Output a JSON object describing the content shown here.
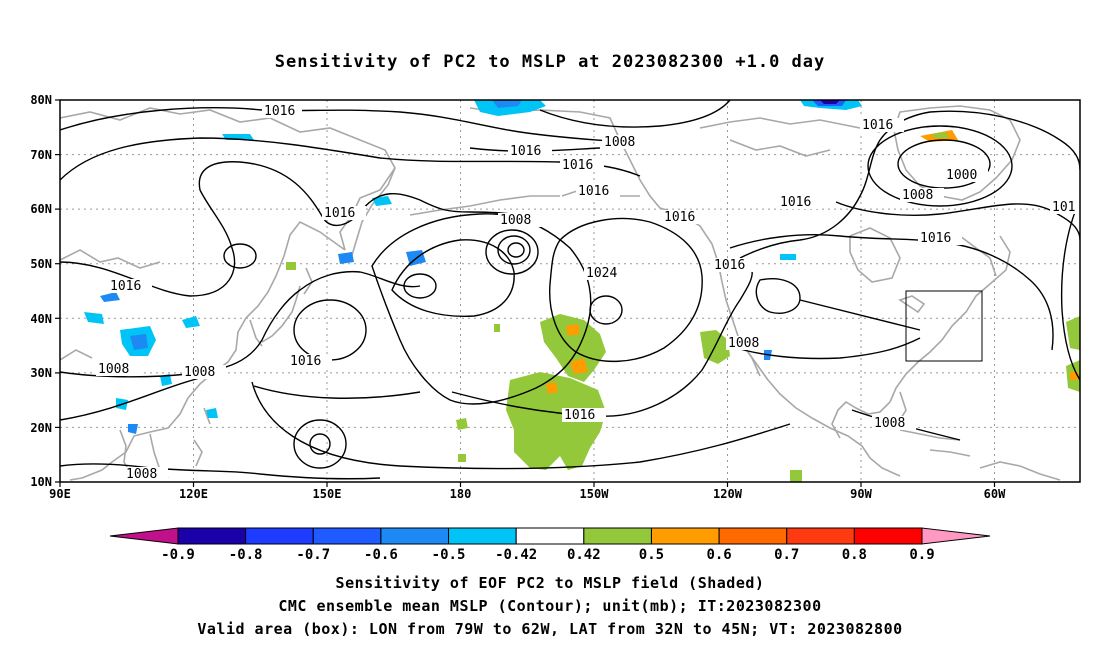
{
  "title": "Sensitivity of PC2 to MSLP at 2023082300 +1.0 day",
  "lat_ticks": [
    "80N",
    "70N",
    "60N",
    "50N",
    "40N",
    "30N",
    "20N",
    "10N"
  ],
  "lon_ticks": [
    "90E",
    "120E",
    "150E",
    "180",
    "150W",
    "120W",
    "90W",
    "60W"
  ],
  "contour_labels": [
    "1016",
    "1008",
    "1016",
    "1016",
    "1016",
    "1008",
    "1016",
    "1016",
    "1016",
    "1016",
    "1016",
    "1024",
    "1016",
    "1016",
    "1016",
    "1008",
    "1008",
    "1008",
    "1016",
    "1000",
    "1008",
    "1008",
    "1016",
    "1016",
    "101",
    "1008"
  ],
  "colorbar": {
    "labels": [
      "-0.9",
      "-0.8",
      "-0.7",
      "-0.6",
      "-0.5",
      "-0.42",
      "0.42",
      "0.5",
      "0.6",
      "0.7",
      "0.8",
      "0.9"
    ],
    "colors": [
      "#c0108a",
      "#1a00a8",
      "#1d3cff",
      "#1f5bff",
      "#1d89f5",
      "#00c4f5",
      "#ffffff",
      "#93c83a",
      "#ff9d00",
      "#ff6a00",
      "#ff3a10",
      "#ff0000",
      "#ff99c4"
    ]
  },
  "valid_box": {
    "lon_min": -79,
    "lon_max": -62,
    "lat_min": 32,
    "lat_max": 45
  },
  "footer": {
    "line1": "Sensitivity of EOF PC2 to MSLP field (Shaded)",
    "line2": "CMC ensemble mean MSLP (Contour); unit(mb); IT:2023082300",
    "line3": "Valid area (box): LON from 79W to 62W, LAT from 32N to 45N; VT: 2023082800"
  }
}
